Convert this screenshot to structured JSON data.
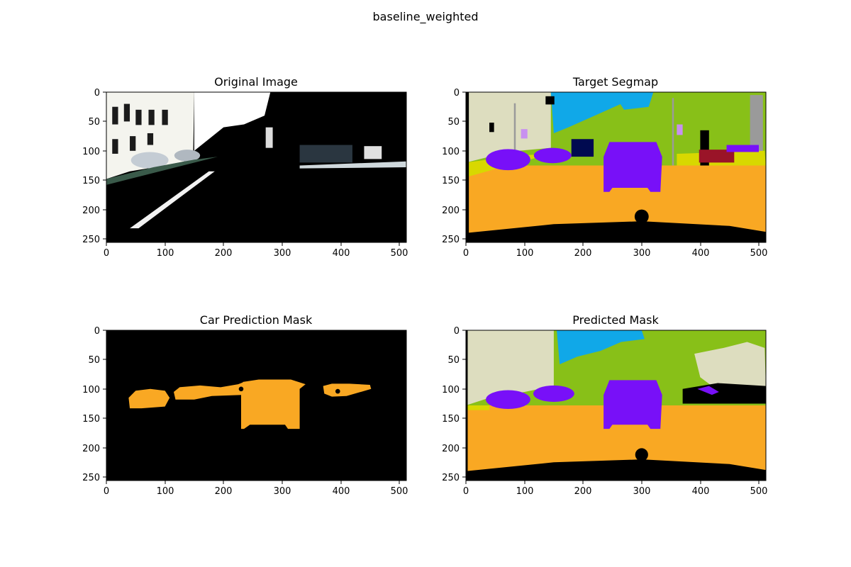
{
  "suptitle": "baseline_weighted",
  "colors": {
    "background": "#ffffff",
    "black": "#000000",
    "road": "#f9a823",
    "car": "#7810f8",
    "sky": "#10a8e8",
    "vegetation": "#88c018",
    "building": "#ddddbf",
    "pole": "#9a9a9a",
    "sidewalk": "#d8d800",
    "sign": "#c890f0",
    "truck": "#000a50",
    "bicycle": "#9a1428",
    "car_mask": "#f9a823"
  },
  "chart_data": [
    {
      "type": "image",
      "title": "Original Image",
      "xlim": [
        0,
        512
      ],
      "ylim": [
        256,
        0
      ],
      "xticks": [
        0,
        100,
        200,
        300,
        400,
        500
      ],
      "yticks": [
        0,
        50,
        100,
        150,
        200,
        250
      ]
    },
    {
      "type": "image",
      "title": "Target Segmap",
      "xlim": [
        0,
        512
      ],
      "ylim": [
        256,
        0
      ],
      "xticks": [
        0,
        100,
        200,
        300,
        400,
        500
      ],
      "yticks": [
        0,
        50,
        100,
        150,
        200,
        250
      ]
    },
    {
      "type": "image",
      "title": "Car Prediction Mask",
      "xlim": [
        0,
        512
      ],
      "ylim": [
        256,
        0
      ],
      "xticks": [
        0,
        100,
        200,
        300,
        400,
        500
      ],
      "yticks": [
        0,
        50,
        100,
        150,
        200,
        250
      ]
    },
    {
      "type": "image",
      "title": "Predicted Mask",
      "xlim": [
        0,
        512
      ],
      "ylim": [
        256,
        0
      ],
      "xticks": [
        0,
        100,
        200,
        300,
        400,
        500
      ],
      "yticks": [
        0,
        50,
        100,
        150,
        200,
        250
      ]
    }
  ]
}
